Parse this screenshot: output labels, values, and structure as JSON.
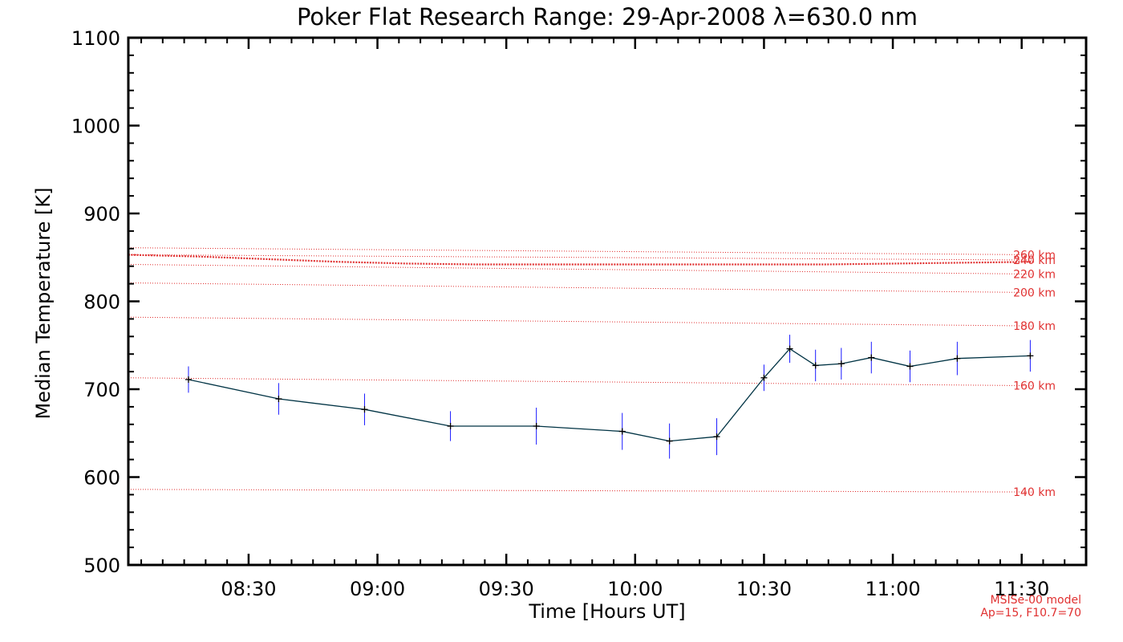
{
  "chart_data": {
    "type": "line",
    "title": "Poker Flat Research Range: 29-Apr-2008 λ=630.0 nm",
    "xlabel": "Time [Hours UT]",
    "ylabel": "Median Temperature [K]",
    "xlim": [
      "08:02",
      "11:45"
    ],
    "ylim": [
      500,
      1100
    ],
    "xticks": [
      "08:30",
      "09:00",
      "09:30",
      "10:00",
      "10:30",
      "11:00",
      "11:30"
    ],
    "yticks": [
      500,
      600,
      700,
      800,
      900,
      1000,
      1100
    ],
    "grid": false,
    "series": [
      {
        "x": [
          "08:16",
          "08:37",
          "08:57",
          "09:17",
          "09:37",
          "09:57",
          "10:08",
          "10:19",
          "10:30",
          "10:36",
          "10:42",
          "10:48",
          "10:55",
          "11:04",
          "11:15",
          "11:32"
        ],
        "values": [
          711,
          689,
          677,
          658,
          658,
          652,
          641,
          646,
          713,
          746,
          727,
          729,
          736,
          726,
          735,
          738
        ],
        "errors": [
          15,
          18,
          18,
          17,
          21,
          21,
          20,
          21,
          15,
          16,
          18,
          18,
          18,
          18,
          19,
          18
        ],
        "color": "#003344",
        "error_color": "#1a1aff"
      }
    ],
    "reference_lines": [
      {
        "label": "140 km",
        "y_start": 586,
        "y_end": 583
      },
      {
        "label": "160 km",
        "y_start": 713,
        "y_end": 704
      },
      {
        "label": "180 km",
        "y_start": 782,
        "y_end": 772
      },
      {
        "label": "200 km",
        "y_start": 821,
        "y_end": 810
      },
      {
        "label": "220 km",
        "y_start": 842,
        "y_end": 831
      },
      {
        "label": "240 km",
        "y_start": 853,
        "y_end": 847
      },
      {
        "label": "260 km",
        "y_start": 861,
        "y_end": 853
      }
    ],
    "model_curve": {
      "values": [
        853,
        851,
        848,
        845,
        843,
        842,
        842,
        842,
        842,
        842,
        842,
        843,
        844,
        845
      ],
      "color": "#e03030"
    },
    "model_note": [
      "MSISe-00 model",
      "Ap=15, F10.7=70"
    ]
  },
  "colors": {
    "axis": "#000000",
    "model": "#e03030"
  }
}
